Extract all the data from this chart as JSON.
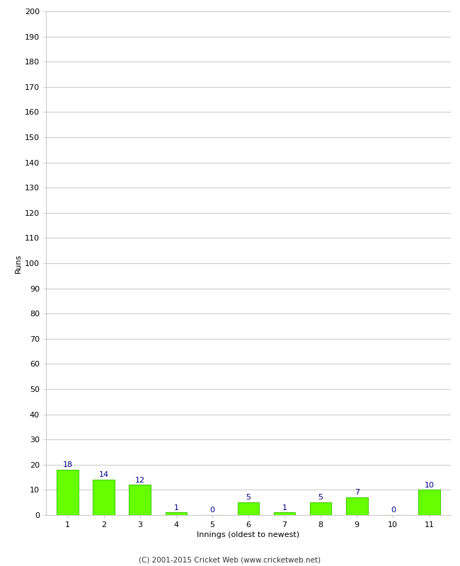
{
  "categories": [
    "1",
    "2",
    "3",
    "4",
    "5",
    "6",
    "7",
    "8",
    "9",
    "10",
    "11"
  ],
  "values": [
    18,
    14,
    12,
    1,
    0,
    5,
    1,
    5,
    7,
    0,
    10
  ],
  "bar_color": "#66ff00",
  "bar_edge_color": "#44cc00",
  "label_color": "#000080",
  "xlabel": "Innings (oldest to newest)",
  "ylabel": "Runs",
  "ylim": [
    0,
    200
  ],
  "yticks": [
    0,
    10,
    20,
    30,
    40,
    50,
    60,
    70,
    80,
    90,
    100,
    110,
    120,
    130,
    140,
    150,
    160,
    170,
    180,
    190,
    200
  ],
  "footer": "(C) 2001-2015 Cricket Web (www.cricketweb.net)",
  "background_color": "#ffffff",
  "grid_color": "#cccccc",
  "label_fontsize": 8,
  "tick_fontsize": 8,
  "ylabel_fontsize": 8,
  "xlabel_fontsize": 8
}
